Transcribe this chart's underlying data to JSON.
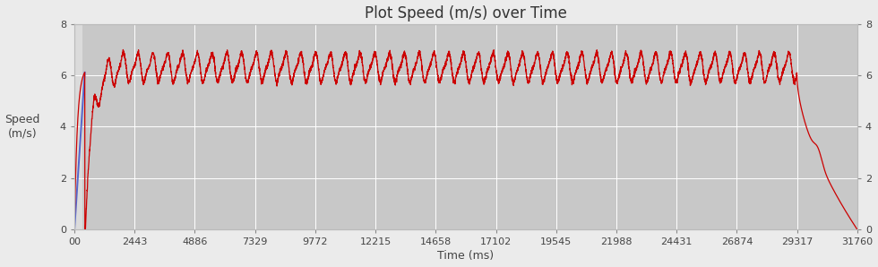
{
  "title": "Plot Speed (m/s) over Time",
  "xlabel": "Time (ms)",
  "ylabel": "Speed\n(m/s)",
  "xlim": [
    0,
    31760
  ],
  "ylim": [
    0,
    8
  ],
  "yticks": [
    0,
    2,
    4,
    6,
    8
  ],
  "xticks": [
    0,
    2443,
    4886,
    7329,
    9772,
    12215,
    14658,
    17102,
    19545,
    21988,
    24431,
    26874,
    29317,
    31760
  ],
  "xtick_labels": [
    "00",
    "2443",
    "4886",
    "7329",
    "9772",
    "12215",
    "14658",
    "17102",
    "19545",
    "21988",
    "24431",
    "26874",
    "29317",
    "31760"
  ],
  "background_color": "#c8c8c8",
  "outer_background": "#ebebeb",
  "line_color_red": "#cc0000",
  "line_color_blue": "#5566cc",
  "accel_end_ms": 420,
  "steady_end_ms": 29317,
  "decel_end_ms": 31760,
  "steady_mean": 6.3,
  "steady_amp": 0.5,
  "oscillation_period_ms": 600,
  "title_fontsize": 12,
  "label_fontsize": 9,
  "tick_fontsize": 8,
  "white_region_end_ms": 420
}
